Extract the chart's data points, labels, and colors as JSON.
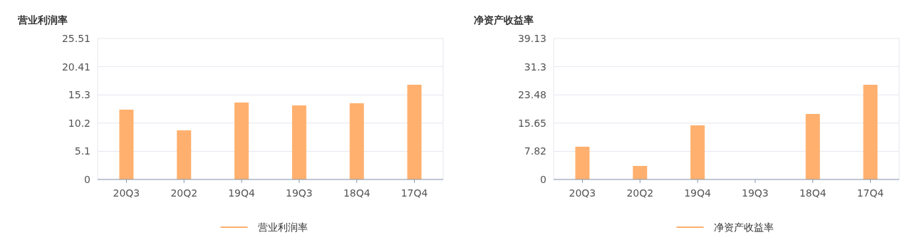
{
  "chart_data": [
    {
      "type": "bar",
      "title": "营业利润率",
      "categories": [
        "20Q3",
        "20Q2",
        "19Q4",
        "19Q3",
        "18Q4",
        "17Q4"
      ],
      "ylim": [
        0,
        25.51
      ],
      "yticks": [
        0,
        5.1,
        10.2,
        15.3,
        20.41,
        25.51
      ],
      "grid": "y",
      "legend": "bottom",
      "series": [
        {
          "name": "营业利润率",
          "color": "#ffb06e",
          "values": [
            12.63,
            8.89,
            13.92,
            13.4,
            13.79,
            17.14
          ]
        }
      ]
    },
    {
      "type": "bar",
      "title": "净资产收益率",
      "categories": [
        "20Q3",
        "20Q2",
        "19Q4",
        "19Q3",
        "18Q4",
        "17Q4"
      ],
      "ylim": [
        0,
        39.13
      ],
      "yticks": [
        0,
        7.82,
        15.65,
        23.48,
        31.3,
        39.13
      ],
      "grid": "y",
      "legend": "bottom",
      "series": [
        {
          "name": "净资产收益率",
          "color": "#ffb06e",
          "values": [
            9.09,
            3.75,
            15.02,
            null,
            18.18,
            26.28
          ]
        }
      ]
    }
  ]
}
